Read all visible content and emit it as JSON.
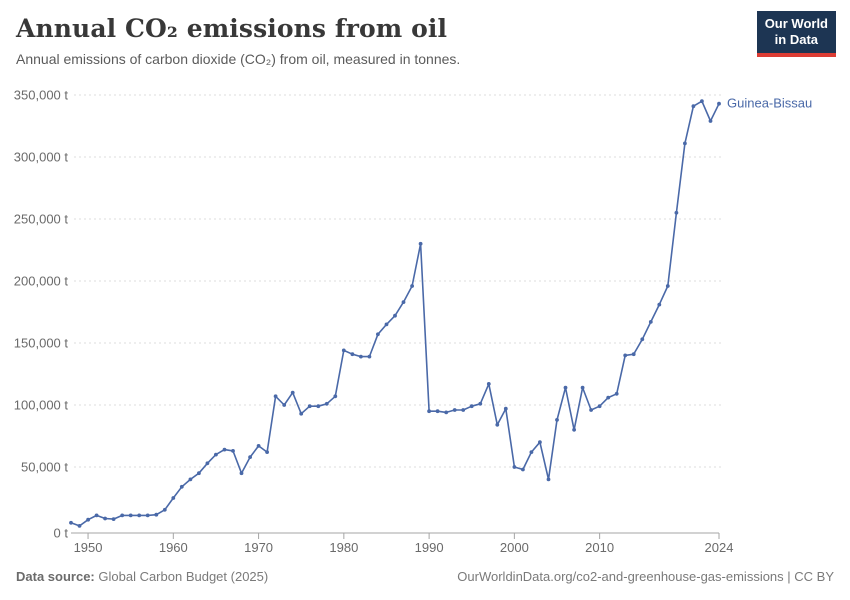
{
  "header": {
    "title": "Annual CO₂ emissions from oil",
    "subtitle": "Annual emissions of carbon dioxide (CO₂) from oil, measured in tonnes.",
    "logo": {
      "line1": "Our World",
      "line2": "in Data",
      "bg_color": "#1d3553",
      "accent_color": "#dc3c34"
    }
  },
  "chart_data": {
    "type": "line",
    "title": "Annual CO₂ emissions from oil",
    "entity": "Guinea-Bissau",
    "unit": "t",
    "line_color": "#4a69a8",
    "grid_color": "#dcdcdc",
    "axis_color": "#a5a5a5",
    "tick_label_color": "#6a6a6a",
    "grid": "horizontal-dashed",
    "legend_position": "end-of-line-label",
    "xlabel": "",
    "ylabel": "",
    "ylim": [
      0,
      350000
    ],
    "xlim": [
      1948,
      2024
    ],
    "yticks": [
      0,
      50000,
      100000,
      150000,
      200000,
      250000,
      300000,
      350000
    ],
    "ytick_labels": [
      "0 t",
      "50,000 t",
      "100,000 t",
      "150,000 t",
      "200,000 t",
      "250,000 t",
      "300,000 t",
      "350,000 t"
    ],
    "xticks": [
      1950,
      1960,
      1970,
      1980,
      1990,
      2000,
      2010,
      2024
    ],
    "years": [
      1948,
      1949,
      1950,
      1951,
      1952,
      1953,
      1954,
      1955,
      1956,
      1957,
      1958,
      1959,
      1960,
      1961,
      1962,
      1963,
      1964,
      1965,
      1966,
      1967,
      1968,
      1969,
      1970,
      1971,
      1972,
      1973,
      1974,
      1975,
      1976,
      1977,
      1978,
      1979,
      1980,
      1981,
      1982,
      1983,
      1984,
      1985,
      1986,
      1987,
      1988,
      1989,
      1990,
      1991,
      1992,
      1993,
      1994,
      1995,
      1996,
      1997,
      1998,
      1999,
      2000,
      2001,
      2002,
      2003,
      2004,
      2005,
      2006,
      2007,
      2008,
      2009,
      2010,
      2011,
      2012,
      2013,
      2014,
      2015,
      2016,
      2017,
      2018,
      2019,
      2020,
      2021,
      2022,
      2023,
      2024
    ],
    "values": [
      5000,
      2500,
      7500,
      11000,
      8500,
      8000,
      11000,
      11000,
      11000,
      11000,
      11500,
      15500,
      25000,
      34000,
      40000,
      45000,
      53000,
      60000,
      64000,
      63000,
      45000,
      58000,
      67000,
      62000,
      107000,
      100000,
      110000,
      93000,
      99000,
      99000,
      101000,
      107000,
      144000,
      141000,
      139000,
      139000,
      157000,
      165000,
      172000,
      183000,
      196000,
      230000,
      95000,
      95000,
      94000,
      96000,
      96000,
      99000,
      101000,
      117000,
      84000,
      97000,
      50000,
      48000,
      62000,
      70000,
      40000,
      88000,
      114000,
      80000,
      114000,
      96000,
      99000,
      106000,
      109000,
      140000,
      141000,
      153000,
      167000,
      181000,
      196000,
      255000,
      311000,
      341000,
      345000,
      329000,
      343000
    ]
  },
  "footer": {
    "source_label": "Data source:",
    "source_value": "Global Carbon Budget (2025)",
    "link": "OurWorldinData.org/co2-and-greenhouse-gas-emissions | CC BY"
  }
}
